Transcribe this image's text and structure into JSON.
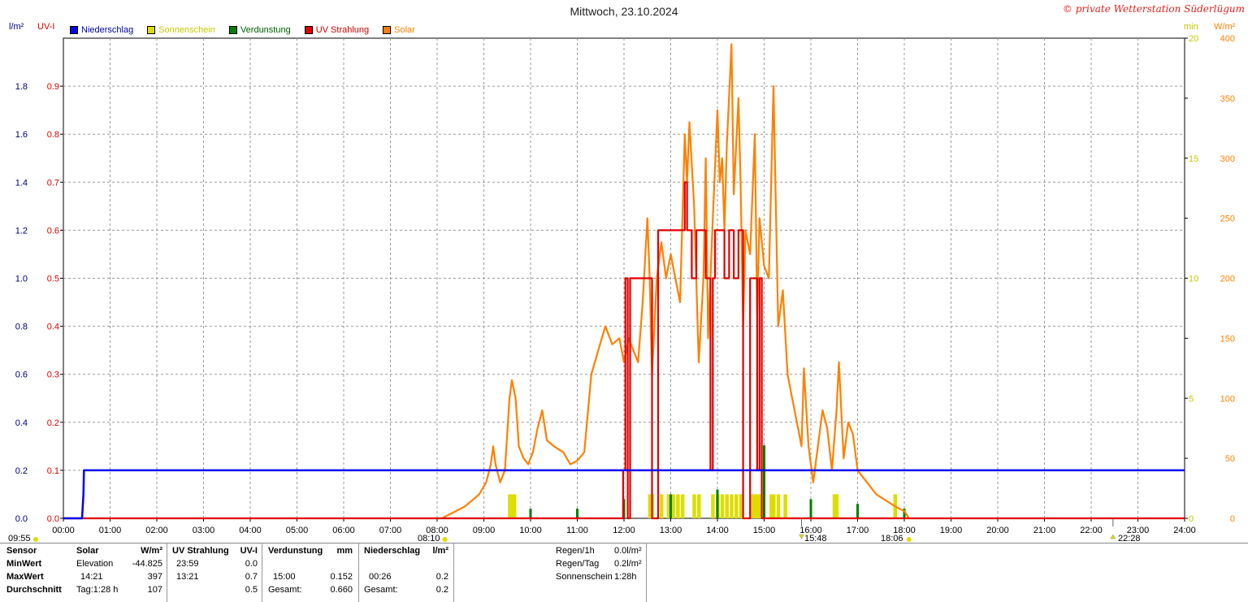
{
  "title": "Mittwoch, 23.10.2024",
  "credit": "© private Wetterstation Süderlügum",
  "legend": [
    {
      "label": "Niederschlag",
      "color": "#0000ff",
      "text_color": "#0000aa"
    },
    {
      "label": "Sonnenschein",
      "color": "#dddd00",
      "text_color": "#c8c800"
    },
    {
      "label": "Verdunstung",
      "color": "#008000",
      "text_color": "#006000"
    },
    {
      "label": "UV Strahlung",
      "color": "#e00000",
      "text_color": "#d00000"
    },
    {
      "label": "Solar",
      "color": "#ff8000",
      "text_color": "#ff8000"
    }
  ],
  "axis_units": {
    "left1": "l/m²",
    "left2": "UV-I",
    "right1": "min",
    "right2": "W/m²"
  },
  "chart_data": {
    "type": "line",
    "x_ticks": [
      "00:00",
      "01:00",
      "02:00",
      "03:00",
      "04:00",
      "05:00",
      "06:00",
      "07:00",
      "08:00",
      "09:00",
      "10:00",
      "11:00",
      "12:00",
      "13:00",
      "14:00",
      "15:00",
      "16:00",
      "17:00",
      "18:00",
      "19:00",
      "20:00",
      "21:00",
      "22:00",
      "23:00",
      "24:00"
    ],
    "y_left_precip_ticks": [
      "0.0",
      "0.2",
      "0.4",
      "0.6",
      "0.8",
      "1.0",
      "1.2",
      "1.4",
      "1.6",
      "1.8"
    ],
    "y_left_uv_ticks": [
      "0.0",
      "0.1",
      "0.2",
      "0.3",
      "0.4",
      "0.5",
      "0.6",
      "0.7",
      "0.8",
      "0.9"
    ],
    "y_right_min_ticks": [
      "0",
      "5",
      "10",
      "15",
      "20"
    ],
    "y_right_solar_ticks": [
      "0",
      "50",
      "100",
      "150",
      "200",
      "250",
      "300",
      "350",
      "400"
    ],
    "ylim_precip": [
      0,
      2.0
    ],
    "ylim_uv": [
      0,
      1.0
    ],
    "ylim_sun_min": [
      0,
      20
    ],
    "ylim_solar": [
      0,
      400
    ],
    "grid": true,
    "series": [
      {
        "name": "Niederschlag",
        "unit": "l/m²",
        "points": [
          [
            0,
            0
          ],
          [
            0.4,
            0
          ],
          [
            0.43,
            0.1
          ],
          [
            0.44,
            0.2
          ],
          [
            24,
            0.2
          ]
        ]
      },
      {
        "name": "UV Strahlung",
        "unit": "UV-I",
        "points": [
          [
            0,
            0
          ],
          [
            11.98,
            0
          ],
          [
            11.98,
            0.1
          ],
          [
            12.03,
            0.1
          ],
          [
            12.03,
            0.5
          ],
          [
            12.08,
            0.5
          ],
          [
            12.08,
            0
          ],
          [
            12.13,
            0
          ],
          [
            12.13,
            0.5
          ],
          [
            12.6,
            0.5
          ],
          [
            12.6,
            0
          ],
          [
            12.73,
            0
          ],
          [
            12.73,
            0.6
          ],
          [
            13.3,
            0.6
          ],
          [
            13.3,
            0.7
          ],
          [
            13.35,
            0.7
          ],
          [
            13.35,
            0.6
          ],
          [
            13.45,
            0.6
          ],
          [
            13.45,
            0.5
          ],
          [
            13.55,
            0.5
          ],
          [
            13.55,
            0.6
          ],
          [
            13.75,
            0.6
          ],
          [
            13.75,
            0.5
          ],
          [
            13.85,
            0.5
          ],
          [
            13.85,
            0.1
          ],
          [
            13.9,
            0.1
          ],
          [
            13.9,
            0.5
          ],
          [
            13.95,
            0.5
          ],
          [
            13.95,
            0.6
          ],
          [
            14.15,
            0.6
          ],
          [
            14.15,
            0.5
          ],
          [
            14.25,
            0.5
          ],
          [
            14.25,
            0.6
          ],
          [
            14.35,
            0.6
          ],
          [
            14.35,
            0.5
          ],
          [
            14.45,
            0.5
          ],
          [
            14.45,
            0.6
          ],
          [
            14.55,
            0.6
          ],
          [
            14.55,
            0
          ],
          [
            14.7,
            0
          ],
          [
            14.7,
            0.5
          ],
          [
            14.85,
            0.5
          ],
          [
            14.85,
            0.1
          ],
          [
            14.9,
            0.1
          ],
          [
            14.9,
            0.5
          ],
          [
            14.95,
            0.5
          ],
          [
            14.95,
            0
          ],
          [
            24,
            0
          ]
        ]
      },
      {
        "name": "Solar",
        "unit": "W/m²",
        "points": [
          [
            8.1,
            0
          ],
          [
            8.3,
            4
          ],
          [
            8.6,
            10
          ],
          [
            8.9,
            20
          ],
          [
            9.05,
            30
          ],
          [
            9.15,
            45
          ],
          [
            9.2,
            60
          ],
          [
            9.25,
            45
          ],
          [
            9.35,
            30
          ],
          [
            9.45,
            40
          ],
          [
            9.55,
            100
          ],
          [
            9.6,
            115
          ],
          [
            9.68,
            100
          ],
          [
            9.75,
            60
          ],
          [
            9.85,
            50
          ],
          [
            9.95,
            45
          ],
          [
            10.05,
            55
          ],
          [
            10.15,
            75
          ],
          [
            10.25,
            90
          ],
          [
            10.35,
            65
          ],
          [
            10.5,
            60
          ],
          [
            10.7,
            55
          ],
          [
            10.85,
            45
          ],
          [
            11.0,
            48
          ],
          [
            11.15,
            55
          ],
          [
            11.3,
            120
          ],
          [
            11.45,
            140
          ],
          [
            11.6,
            160
          ],
          [
            11.75,
            145
          ],
          [
            11.9,
            150
          ],
          [
            12.0,
            130
          ],
          [
            12.1,
            150
          ],
          [
            12.2,
            140
          ],
          [
            12.3,
            130
          ],
          [
            12.4,
            180
          ],
          [
            12.5,
            250
          ],
          [
            12.55,
            200
          ],
          [
            12.6,
            120
          ],
          [
            12.7,
            200
          ],
          [
            12.8,
            230
          ],
          [
            12.9,
            200
          ],
          [
            13.0,
            220
          ],
          [
            13.1,
            200
          ],
          [
            13.2,
            180
          ],
          [
            13.3,
            320
          ],
          [
            13.35,
            280
          ],
          [
            13.4,
            330
          ],
          [
            13.5,
            260
          ],
          [
            13.6,
            130
          ],
          [
            13.7,
            200
          ],
          [
            13.75,
            300
          ],
          [
            13.8,
            150
          ],
          [
            13.9,
            250
          ],
          [
            14.0,
            340
          ],
          [
            14.05,
            280
          ],
          [
            14.1,
            300
          ],
          [
            14.15,
            240
          ],
          [
            14.2,
            310
          ],
          [
            14.3,
            395
          ],
          [
            14.35,
            270
          ],
          [
            14.45,
            350
          ],
          [
            14.5,
            270
          ],
          [
            14.55,
            160
          ],
          [
            14.6,
            240
          ],
          [
            14.7,
            220
          ],
          [
            14.8,
            320
          ],
          [
            14.85,
            170
          ],
          [
            14.9,
            250
          ],
          [
            15.0,
            210
          ],
          [
            15.1,
            200
          ],
          [
            15.2,
            360
          ],
          [
            15.3,
            160
          ],
          [
            15.4,
            190
          ],
          [
            15.5,
            120
          ],
          [
            15.6,
            100
          ],
          [
            15.7,
            80
          ],
          [
            15.8,
            60
          ],
          [
            15.85,
            125
          ],
          [
            15.95,
            60
          ],
          [
            16.05,
            30
          ],
          [
            16.15,
            60
          ],
          [
            16.25,
            90
          ],
          [
            16.35,
            75
          ],
          [
            16.45,
            40
          ],
          [
            16.55,
            90
          ],
          [
            16.6,
            130
          ],
          [
            16.7,
            50
          ],
          [
            16.8,
            80
          ],
          [
            16.9,
            70
          ],
          [
            17.0,
            40
          ],
          [
            17.2,
            30
          ],
          [
            17.4,
            20
          ],
          [
            17.6,
            15
          ],
          [
            17.8,
            10
          ],
          [
            18.0,
            6
          ],
          [
            18.1,
            0
          ]
        ]
      },
      {
        "name": "Sonnenschein",
        "unit": "min",
        "points": [
          [
            9.55,
            1
          ],
          [
            9.6,
            1
          ],
          [
            9.65,
            1
          ],
          [
            12.55,
            1
          ],
          [
            12.6,
            1
          ],
          [
            12.8,
            1
          ],
          [
            12.95,
            1
          ],
          [
            13.05,
            1
          ],
          [
            13.15,
            1
          ],
          [
            13.25,
            1
          ],
          [
            13.5,
            1
          ],
          [
            13.6,
            1
          ],
          [
            13.9,
            1
          ],
          [
            14.0,
            1
          ],
          [
            14.1,
            1
          ],
          [
            14.2,
            1
          ],
          [
            14.3,
            1
          ],
          [
            14.4,
            1
          ],
          [
            14.5,
            1
          ],
          [
            14.75,
            1
          ],
          [
            14.8,
            1
          ],
          [
            14.85,
            1
          ],
          [
            14.9,
            1
          ],
          [
            15.15,
            1
          ],
          [
            15.2,
            1
          ],
          [
            15.3,
            1
          ],
          [
            15.45,
            1
          ],
          [
            16.5,
            1
          ],
          [
            16.55,
            1
          ],
          [
            17.8,
            1
          ]
        ]
      },
      {
        "name": "Verdunstung",
        "unit": "mm",
        "points": [
          [
            10.0,
            0.02
          ],
          [
            11.0,
            0.02
          ],
          [
            12.0,
            0.04
          ],
          [
            13.0,
            0.05
          ],
          [
            14.0,
            0.06
          ],
          [
            15.0,
            0.152
          ],
          [
            16.0,
            0.04
          ],
          [
            17.0,
            0.03
          ],
          [
            18.0,
            0.02
          ]
        ]
      }
    ]
  },
  "markers": {
    "left_time": "09:55",
    "sunrise": "08:10",
    "noon_marker": "15:48",
    "sunset": "18:06",
    "moon_marker": "22:28"
  },
  "table": {
    "rows": [
      "Sensor",
      "MinWert",
      "MaxWert",
      "Durchschnitt"
    ],
    "solar": {
      "header": "Solar",
      "unit": "W/m²",
      "min_label": "Elevation",
      "min_value": "-44.825",
      "max_time": "14:21",
      "max_value": "397",
      "avg_label": "Tag:1:28 h",
      "avg_value": "107"
    },
    "uv": {
      "header": "UV Strahlung",
      "unit": "UV-I",
      "min_time": "23:59",
      "min_value": "0.0",
      "max_time": "13:21",
      "max_value": "0.7",
      "avg_value": "0.5"
    },
    "evap": {
      "header": "Verdunstung",
      "unit": "mm",
      "max_time": "15:00",
      "max_value": "0.152",
      "avg_label": "Gesamt:",
      "avg_value": "0.660"
    },
    "precip": {
      "header": "Niederschlag",
      "unit": "l/m²",
      "max_time": "00:26",
      "max_value": "0.2",
      "avg_label": "Gesamt:",
      "avg_value": "0.2"
    },
    "extra": [
      {
        "label": "Regen/1h",
        "value": "0.0l/m²"
      },
      {
        "label": "Regen/Tag",
        "value": "0.2l/m²"
      },
      {
        "label": "Sonnenschein",
        "value": "1:28h"
      }
    ]
  }
}
